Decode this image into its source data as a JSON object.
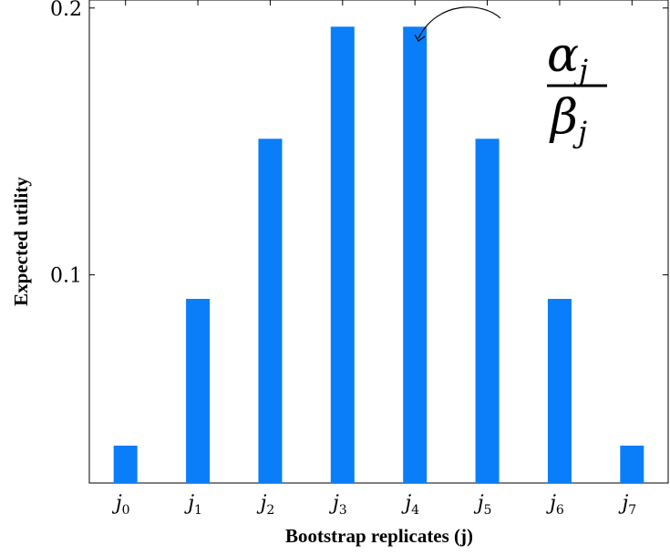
{
  "chart_data": {
    "type": "bar",
    "categories": [
      "j0",
      "j1",
      "j2",
      "j3",
      "j4",
      "j5",
      "j6",
      "j7"
    ],
    "category_labels": [
      {
        "base": "j",
        "sub": "0"
      },
      {
        "base": "j",
        "sub": "1"
      },
      {
        "base": "j",
        "sub": "2"
      },
      {
        "base": "j",
        "sub": "3"
      },
      {
        "base": "j",
        "sub": "4"
      },
      {
        "base": "j",
        "sub": "5"
      },
      {
        "base": "j",
        "sub": "6"
      },
      {
        "base": "j",
        "sub": "7"
      }
    ],
    "values": [
      0.036,
      0.091,
      0.151,
      0.193,
      0.193,
      0.151,
      0.091,
      0.036
    ],
    "xlabel": "Bootstrap replicates (j)",
    "ylabel": "Expected utility",
    "ylim": [
      0.022,
      0.203
    ],
    "yticks": [
      0.1,
      0.2
    ],
    "ytick_labels": [
      "0.1",
      "0.2"
    ],
    "bar_color": "#0a7ef8",
    "grid": false,
    "annotation": {
      "target_category": "j4",
      "numerator": {
        "base": "α",
        "sub": "j"
      },
      "denominator": {
        "base": "β",
        "sub": "j"
      }
    }
  }
}
